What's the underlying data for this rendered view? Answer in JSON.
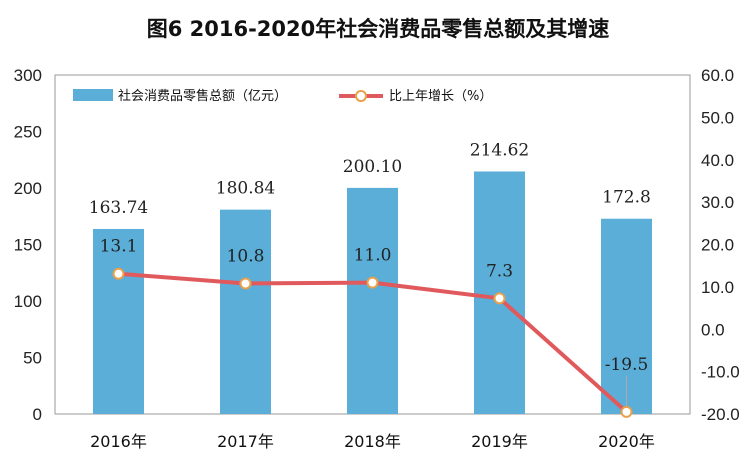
{
  "chart_data": {
    "type": "bar",
    "title": "图6    2016-2020年社会消费品零售总额及其增速",
    "categories": [
      "2016年",
      "2017年",
      "2018年",
      "2019年",
      "2020年"
    ],
    "series": [
      {
        "name": "社会消费品零售总额（亿元）",
        "type": "bar",
        "axis": "left",
        "color": "#5aaed8",
        "values": [
          163.74,
          180.84,
          200.1,
          214.62,
          172.8
        ],
        "labels": [
          "163.74",
          "180.84",
          "200.10",
          "214.62",
          "172.8"
        ]
      },
      {
        "name": "比上年增长（%）",
        "type": "line",
        "axis": "right",
        "color": "#e05a5d",
        "marker_fill": "#ffffff",
        "marker_stroke": "#e8a04a",
        "values": [
          13.1,
          10.8,
          11.0,
          7.3,
          -19.5
        ],
        "labels": [
          "13.1",
          "10.8",
          "11.0",
          "7.3",
          "-19.5"
        ]
      }
    ],
    "y_left": {
      "range": [
        0,
        300
      ],
      "ticks": [
        "0",
        "50",
        "100",
        "150",
        "200",
        "250",
        "300"
      ]
    },
    "y_right": {
      "range": [
        -20,
        60
      ],
      "ticks": [
        "-20.0",
        "-10.0",
        "0.0",
        "10.0",
        "20.0",
        "30.0",
        "40.0",
        "50.0",
        "60.0"
      ]
    },
    "grid": false,
    "legend_position": "top-left"
  }
}
